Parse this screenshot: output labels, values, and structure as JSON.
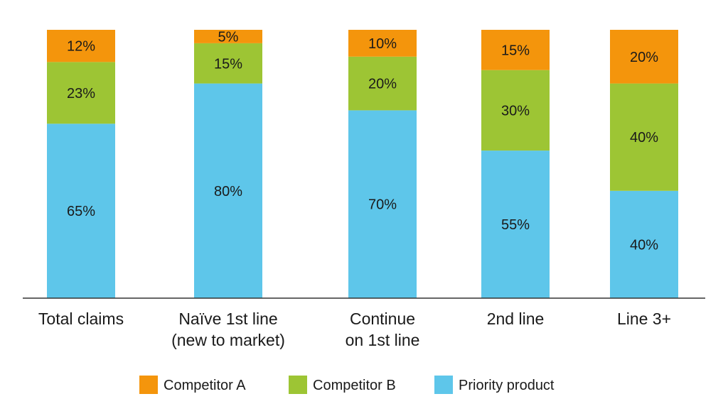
{
  "chart_data": {
    "type": "bar",
    "stacked": true,
    "categories": [
      [
        "Total claims"
      ],
      [
        "Naïve 1st line",
        "(new to market)"
      ],
      [
        "Continue",
        "on 1st line"
      ],
      [
        "2nd line"
      ],
      [
        "Line 3+"
      ]
    ],
    "series": [
      {
        "name": "Priority product",
        "color": "#5ec6ea",
        "values": [
          65,
          80,
          70,
          55,
          40
        ],
        "labels": [
          "65%",
          "80%",
          "70%",
          "55%",
          "40%"
        ]
      },
      {
        "name": "Competitor B",
        "color": "#9dc534",
        "values": [
          23,
          15,
          20,
          30,
          40
        ],
        "labels": [
          "23%",
          "15%",
          "20%",
          "30%",
          "40%"
        ]
      },
      {
        "name": "Competitor A",
        "color": "#f4950c",
        "values": [
          12,
          5,
          10,
          15,
          20
        ],
        "labels": [
          "12%",
          "5%",
          "10%",
          "15%",
          "20%"
        ]
      }
    ],
    "legend_order": [
      "Competitor A",
      "Competitor B",
      "Priority product"
    ],
    "legend_position": "bottom",
    "ylim": [
      0,
      100
    ],
    "grid": false,
    "title": "",
    "xlabel": "",
    "ylabel": ""
  }
}
